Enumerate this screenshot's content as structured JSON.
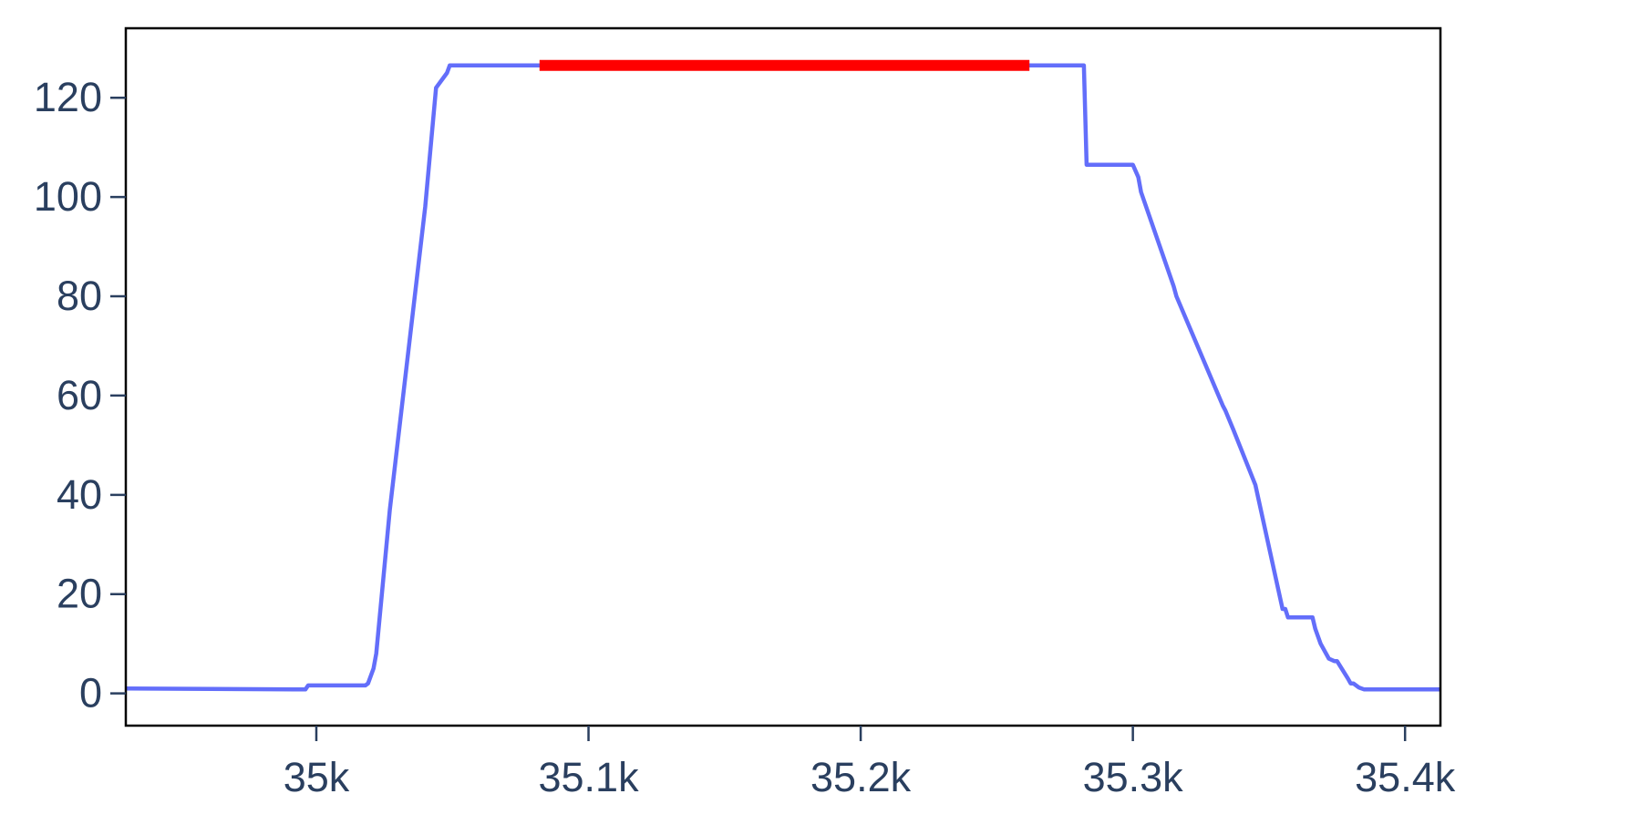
{
  "chart_data": {
    "type": "line",
    "title": "",
    "xlabel": "",
    "ylabel": "",
    "xlim": [
      34930,
      35413
    ],
    "ylim": [
      -6.5,
      134
    ],
    "x_ticks": [
      35000,
      35100,
      35200,
      35300,
      35400
    ],
    "x_tick_labels": [
      "35k",
      "35.1k",
      "35.2k",
      "35.3k",
      "35.4k"
    ],
    "y_ticks": [
      0,
      20,
      40,
      60,
      80,
      100,
      120
    ],
    "y_tick_labels": [
      "0",
      "20",
      "40",
      "60",
      "80",
      "100",
      "120"
    ],
    "grid": false,
    "legend": "none",
    "series": [
      {
        "color": "#636efa",
        "x": [
          34930,
          34992,
          34996,
          34997,
          35017,
          35018,
          35019,
          35021,
          35022,
          35027,
          35040,
          35044,
          35048,
          35049,
          35050,
          35051,
          35062,
          35100,
          35200,
          35282,
          35283,
          35300,
          35302,
          35303,
          35315,
          35316,
          35333,
          35334,
          35337,
          35345,
          35355,
          35356,
          35357,
          35366,
          35367,
          35369,
          35372,
          35374,
          35375,
          35379,
          35380,
          35381,
          35383,
          35385,
          35413
        ],
        "y": [
          1,
          0.8,
          0.8,
          1.6,
          1.6,
          1.6,
          2,
          5,
          8,
          37,
          98,
          122,
          125,
          126.5,
          126.5,
          126.5,
          126.5,
          126.5,
          126.5,
          126.5,
          106.5,
          106.5,
          104,
          101,
          82,
          80,
          58,
          57,
          53,
          42,
          17,
          17,
          15.3,
          15.3,
          13,
          10,
          7,
          6.5,
          6.5,
          3,
          2,
          2,
          1.2,
          0.8,
          0.8
        ]
      },
      {
        "color": "#ff0000",
        "x": [
          35082,
          35262
        ],
        "y": [
          126.5,
          126.5
        ]
      }
    ]
  }
}
